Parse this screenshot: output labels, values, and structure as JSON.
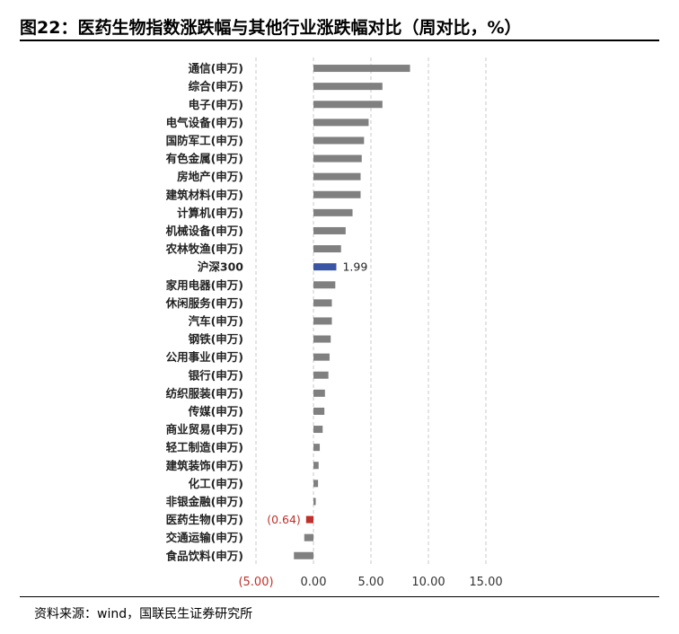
{
  "title": "图22：医药生物指数涨跌幅与其他行业涨跌幅对比（周对比，%）",
  "source": "资料来源：wind，国联民生证券研究所",
  "colors": {
    "default": "#808080",
    "benchmark": "#3a55a4",
    "highlight": "#c0302a",
    "negative_tick": "#c0302a",
    "grid": "#c8c8c8"
  },
  "chart_data": {
    "type": "bar",
    "orientation": "horizontal",
    "title": "图22：医药生物指数涨跌幅与其他行业涨跌幅对比（周对比，%）",
    "xlabel": "",
    "ylabel": "",
    "xlim": [
      -5,
      15
    ],
    "x_ticks": [
      -5,
      0,
      5,
      10,
      15
    ],
    "x_tick_labels": [
      "(5.00)",
      "0.00",
      "5.00",
      "10.00",
      "15.00"
    ],
    "grid": "vertical-dashed",
    "legend": "none",
    "categories": [
      "通信(申万)",
      "综合(申万)",
      "电子(申万)",
      "电气设备(申万)",
      "国防军工(申万)",
      "有色金属(申万)",
      "房地产(申万)",
      "建筑材料(申万)",
      "计算机(申万)",
      "机械设备(申万)",
      "农林牧渔(申万)",
      "沪深300",
      "家用电器(申万)",
      "休闲服务(申万)",
      "汽车(申万)",
      "钢铁(申万)",
      "公用事业(申万)",
      "银行(申万)",
      "纺织服装(申万)",
      "传媒(申万)",
      "商业贸易(申万)",
      "轻工制造(申万)",
      "建筑装饰(申万)",
      "化工(申万)",
      "非银金融(申万)",
      "医药生物(申万)",
      "交通运输(申万)",
      "食品饮料(申万)"
    ],
    "values": [
      8.4,
      6.0,
      6.0,
      4.8,
      4.4,
      4.2,
      4.1,
      4.1,
      3.4,
      2.8,
      2.4,
      1.99,
      1.9,
      1.6,
      1.6,
      1.5,
      1.4,
      1.3,
      1.0,
      0.95,
      0.8,
      0.55,
      0.45,
      0.4,
      0.2,
      -0.64,
      -0.8,
      -1.7
    ],
    "benchmark": "沪深300",
    "highlight": "医药生物(申万)",
    "data_labels": [
      {
        "category": "沪深300",
        "text": "1.99"
      },
      {
        "category": "医药生物(申万)",
        "text": "(0.64)"
      }
    ]
  }
}
